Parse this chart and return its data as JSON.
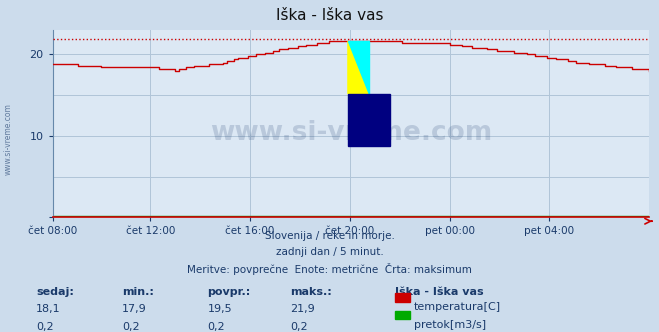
{
  "title": "Iška - Iška vas",
  "bg_color": "#ccdcec",
  "plot_bg_color": "#dce8f4",
  "grid_color_v": "#b0c4d8",
  "grid_color_h": "#b0c4d8",
  "x_labels": [
    "čet 08:00",
    "čet 12:00",
    "čet 16:00",
    "čet 20:00",
    "pet 00:00",
    "pet 04:00"
  ],
  "x_ticks_norm": [
    0.0,
    0.1667,
    0.3333,
    0.5,
    0.6667,
    0.8333
  ],
  "total_points": 288,
  "ylim": [
    0,
    23
  ],
  "yticks": [
    0,
    10,
    20
  ],
  "max_line_value": 21.9,
  "footer_lines": [
    "Slovenija / reke in morje.",
    "zadnji dan / 5 minut.",
    "Meritve: povprečne  Enote: metrične  Črta: maksimum"
  ],
  "table_headers": [
    "sedaj:",
    "min.:",
    "povpr.:",
    "maks.:"
  ],
  "table_row1": [
    "18,1",
    "17,9",
    "19,5",
    "21,9"
  ],
  "table_row2": [
    "0,2",
    "0,2",
    "0,2",
    "0,2"
  ],
  "legend_title": "Iška - Iška vas",
  "legend_items": [
    {
      "label": "temperatura[C]",
      "color": "#cc0000"
    },
    {
      "label": "pretok[m3/s]",
      "color": "#00aa00"
    }
  ],
  "temp_color": "#cc0000",
  "flow_color": "#009900",
  "max_line_color": "#cc0000",
  "watermark_text": "www.si-vreme.com",
  "watermark_color": "#1a3a6a",
  "watermark_alpha": 0.18,
  "font_color_blue": "#1a3a6a",
  "left_label": "www.si-vreme.com",
  "spine_left_color": "#6688aa",
  "spine_bottom_color": "#cc0000"
}
